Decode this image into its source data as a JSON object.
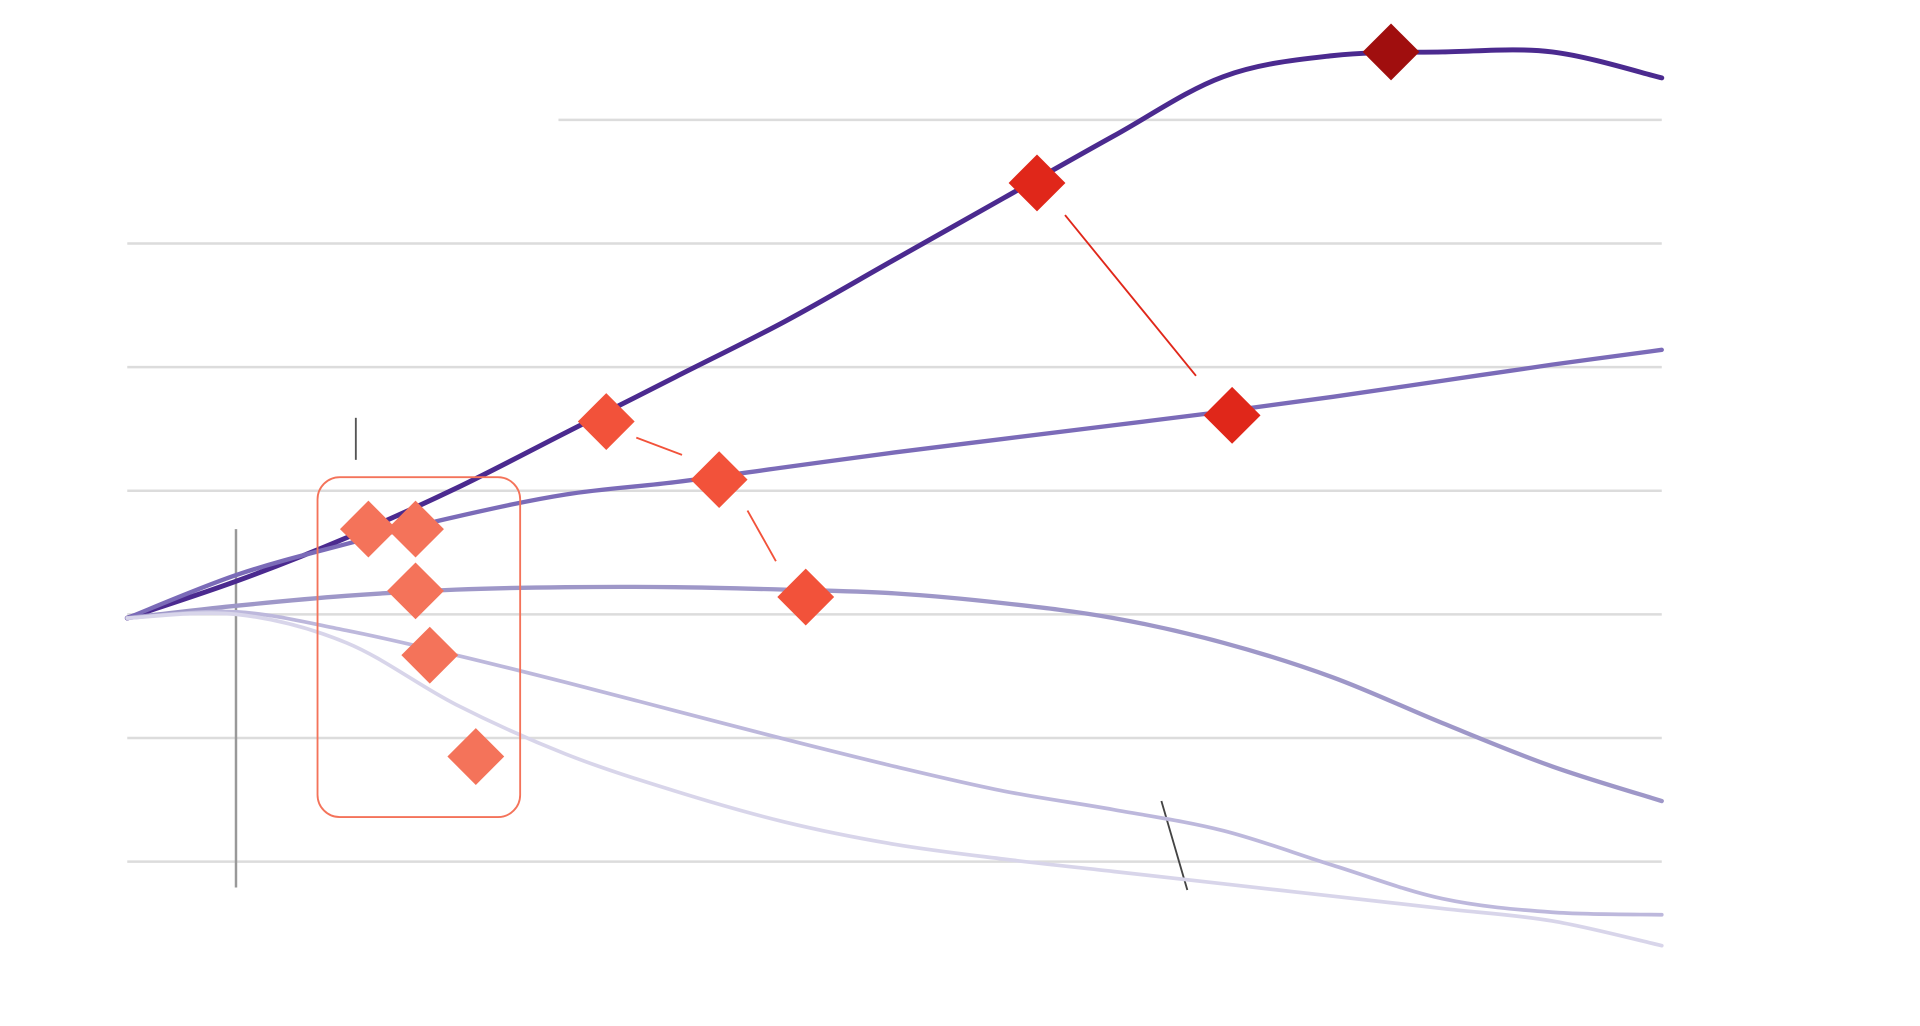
{
  "chart_data": [
    {
      "type": "line",
      "x": [
        0,
        1,
        2,
        3,
        4,
        5,
        6,
        7,
        8,
        9,
        10,
        11,
        12,
        13,
        14
      ],
      "xlim": [
        0,
        14
      ],
      "ylim": [
        -3.3,
        4.95
      ],
      "yticks": [
        4,
        3,
        2,
        1,
        0,
        -1,
        -2
      ],
      "grid": true,
      "series": [
        {
          "color": "#4b2a8f",
          "values": [
            -0.03,
            0.27,
            0.62,
            1.02,
            1.47,
            1.92,
            2.37,
            2.87,
            3.37,
            3.87,
            4.35,
            4.52,
            4.55,
            4.55,
            4.34
          ]
        },
        {
          "color": "#7b6bb8",
          "values": [
            -0.03,
            0.32,
            0.57,
            0.79,
            0.97,
            1.07,
            1.19,
            1.31,
            1.42,
            1.53,
            1.64,
            1.76,
            1.89,
            2.02,
            2.14
          ]
        },
        {
          "color": "#9e97c8",
          "values": [
            -0.03,
            0.07,
            0.15,
            0.2,
            0.22,
            0.22,
            0.2,
            0.17,
            0.09,
            -0.03,
            -0.23,
            -0.51,
            -0.88,
            -1.23,
            -1.51
          ]
        },
        {
          "color": "#bdb8dc",
          "values": [
            -0.03,
            0.02,
            -0.13,
            -0.33,
            -0.55,
            -0.78,
            -1.01,
            -1.23,
            -1.43,
            -1.58,
            -1.75,
            -2.03,
            -2.3,
            -2.41,
            -2.43
          ]
        },
        {
          "color": "#d8d5ea",
          "values": [
            -0.03,
            0.0,
            -0.23,
            -0.73,
            -1.13,
            -1.43,
            -1.68,
            -1.86,
            -1.98,
            -2.08,
            -2.18,
            -2.28,
            -2.38,
            -2.48,
            -2.68
          ]
        }
      ]
    },
    {
      "type": "scatter",
      "xlim": [
        0,
        14
      ],
      "ylim": [
        -3.3,
        4.95
      ],
      "x": [
        2.2,
        2.63,
        2.63,
        2.76,
        3.18,
        4.37,
        5.4,
        6.19,
        8.3,
        10.08,
        11.53
      ],
      "values": [
        0.69,
        0.69,
        0.19,
        -0.33,
        -1.15,
        1.56,
        1.09,
        0.14,
        3.49,
        1.61,
        4.55
      ],
      "colors": [
        "#f4735a",
        "#f4735a",
        "#f4735a",
        "#f4735a",
        "#f4735a",
        "#f2523a",
        "#f2523a",
        "#f2523a",
        "#e0271a",
        "#e0271a",
        "#a00e0e"
      ]
    }
  ]
}
